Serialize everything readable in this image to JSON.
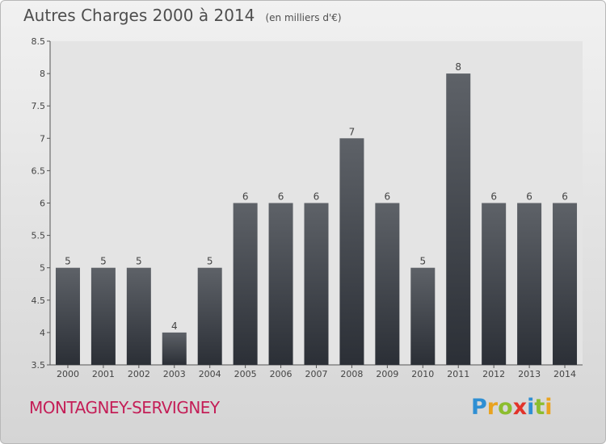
{
  "header": {
    "title": "Autres Charges 2000 à 2014",
    "subtitle": "(en milliers d'€)"
  },
  "footer": {
    "commune": "MONTAGNEY-SERVIGNEY",
    "logo_letters": [
      {
        "ch": "P",
        "color": "#2f8fd3"
      },
      {
        "ch": "r",
        "color": "#e9a31f"
      },
      {
        "ch": "o",
        "color": "#8cbd2e"
      },
      {
        "ch": "x",
        "color": "#e2332a"
      },
      {
        "ch": "i",
        "color": "#2f8fd3"
      },
      {
        "ch": "t",
        "color": "#8cbd2e"
      },
      {
        "ch": "i",
        "color": "#e9a31f"
      }
    ]
  },
  "chart_data": {
    "type": "bar",
    "categories": [
      "2000",
      "2001",
      "2002",
      "2003",
      "2004",
      "2005",
      "2006",
      "2007",
      "2008",
      "2009",
      "2010",
      "2011",
      "2012",
      "2013",
      "2014"
    ],
    "values": [
      5,
      5,
      5,
      4,
      5,
      6,
      6,
      6,
      7,
      6,
      5,
      8,
      6,
      6,
      6
    ],
    "data_labels": [
      "5",
      "5",
      "5",
      "4",
      "5",
      "6",
      "6",
      "6",
      "7",
      "6",
      "5",
      "8",
      "6",
      "6",
      "6"
    ],
    "title": "Autres Charges 2000 à 2014",
    "ylim": [
      3.5,
      8.5
    ],
    "yticks": [
      3.5,
      4,
      4.5,
      5,
      5.5,
      6,
      6.5,
      7,
      7.5,
      8,
      8.5
    ],
    "ytick_labels": [
      "3.5",
      "4",
      "4.5",
      "5",
      "5.5",
      "6",
      "6.5",
      "7",
      "7.5",
      "8",
      "8.5"
    ],
    "grid": false,
    "bar_colors": {
      "top": "#5e6268",
      "bottom": "#2b2f36"
    }
  }
}
